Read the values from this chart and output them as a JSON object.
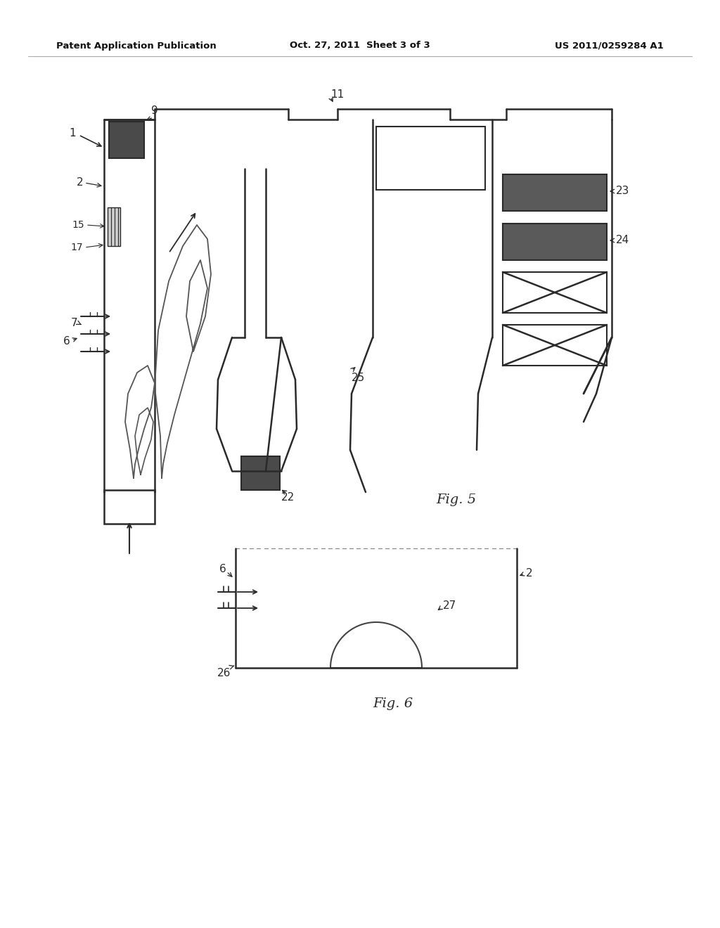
{
  "bg_color": "#ffffff",
  "header_left": "Patent Application Publication",
  "header_mid": "Oct. 27, 2011  Sheet 3 of 3",
  "header_right": "US 2011/0259284 A1",
  "fig5_label": "Fig. 5",
  "fig6_label": "Fig. 6",
  "line_color": "#2a2a2a",
  "dark_fill": "#4a4a4a",
  "hatched_fill": "#888888"
}
